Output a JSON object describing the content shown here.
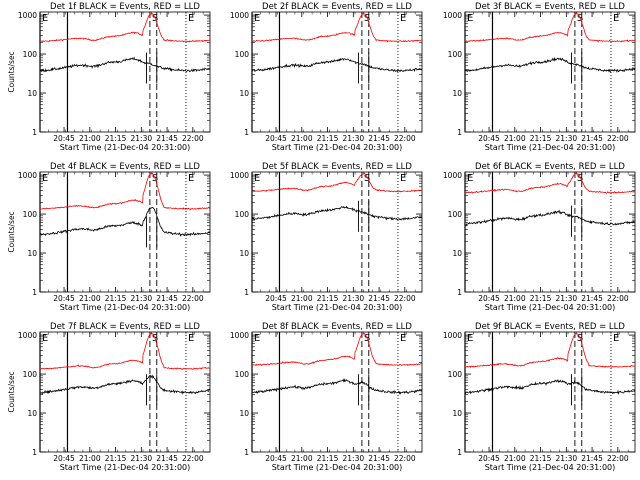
{
  "chart_data": [
    {
      "type": "line",
      "title": "Det 1f BLACK = Events, RED = LLD",
      "xlabel": "Start Time (21-Dec-04 20:31:00)",
      "ylabel": "Counts/sec",
      "yscale": "log",
      "ylim": [
        1,
        1200
      ],
      "xlim": [
        "20:31",
        "22:10"
      ],
      "x_ticks": [
        "20:45",
        "21:00",
        "21:15",
        "21:30",
        "21:45",
        "22:00"
      ],
      "y_ticks": [
        "1",
        "10",
        "100",
        "1000"
      ],
      "markers": [
        {
          "label": "E",
          "time": "20:31",
          "style": "solid"
        },
        {
          "label": "",
          "time": "20:47",
          "style": "solid"
        },
        {
          "label": "S",
          "time": "21:35",
          "style": "dashed"
        },
        {
          "label": "",
          "time": "21:39",
          "style": "dashed"
        },
        {
          "label": "E",
          "time": "21:56",
          "style": "dotted"
        }
      ],
      "series": [
        {
          "name": "LLD",
          "color": "#ff0000",
          "baseline": 250,
          "flare_peak": 1100
        },
        {
          "name": "Events",
          "color": "#000000",
          "baseline": 50,
          "flare_peak": 55
        }
      ]
    },
    {
      "type": "line",
      "title": "Det 2f BLACK = Events, RED = LLD",
      "xlabel": "Start Time (21-Dec-04 20:31:00)",
      "ylabel": "",
      "yscale": "log",
      "ylim": [
        1,
        1200
      ],
      "xlim": [
        "20:31",
        "22:10"
      ],
      "x_ticks": [
        "20:45",
        "21:00",
        "21:15",
        "21:30",
        "21:45",
        "22:00"
      ],
      "y_ticks": [
        "1",
        "10",
        "100",
        "1000"
      ],
      "markers": [
        {
          "label": "E",
          "time": "20:31",
          "style": "solid"
        },
        {
          "label": "",
          "time": "20:47",
          "style": "solid"
        },
        {
          "label": "S",
          "time": "21:35",
          "style": "dashed"
        },
        {
          "label": "",
          "time": "21:39",
          "style": "dashed"
        },
        {
          "label": "E",
          "time": "21:56",
          "style": "dotted"
        }
      ],
      "series": [
        {
          "name": "LLD",
          "color": "#ff0000",
          "baseline": 250,
          "flare_peak": 1100
        },
        {
          "name": "Events",
          "color": "#000000",
          "baseline": 50,
          "flare_peak": 55
        }
      ]
    },
    {
      "type": "line",
      "title": "Det 3f BLACK = Events, RED = LLD",
      "xlabel": "Start Time (21-Dec-04 20:31:00)",
      "ylabel": "",
      "yscale": "log",
      "ylim": [
        1,
        1200
      ],
      "xlim": [
        "20:31",
        "22:10"
      ],
      "x_ticks": [
        "20:45",
        "21:00",
        "21:15",
        "21:30",
        "21:45",
        "22:00"
      ],
      "y_ticks": [
        "1",
        "10",
        "100",
        "1000"
      ],
      "markers": [
        {
          "label": "E",
          "time": "20:31",
          "style": "solid"
        },
        {
          "label": "",
          "time": "20:47",
          "style": "solid"
        },
        {
          "label": "S",
          "time": "21:35",
          "style": "dashed"
        },
        {
          "label": "",
          "time": "21:39",
          "style": "dashed"
        },
        {
          "label": "E",
          "time": "21:56",
          "style": "dotted"
        }
      ],
      "series": [
        {
          "name": "LLD",
          "color": "#ff0000",
          "baseline": 250,
          "flare_peak": 1100
        },
        {
          "name": "Events",
          "color": "#000000",
          "baseline": 50,
          "flare_peak": 55
        }
      ]
    },
    {
      "type": "line",
      "title": "Det 4f BLACK = Events, RED = LLD",
      "xlabel": "Start Time (21-Dec-04 20:31:00)",
      "ylabel": "Counts/sec",
      "yscale": "log",
      "ylim": [
        1,
        1200
      ],
      "xlim": [
        "20:31",
        "22:10"
      ],
      "x_ticks": [
        "20:45",
        "21:00",
        "21:15",
        "21:30",
        "21:45",
        "22:00"
      ],
      "y_ticks": [
        "1",
        "10",
        "100",
        "1000"
      ],
      "markers": [
        {
          "label": "E",
          "time": "20:31",
          "style": "solid"
        },
        {
          "label": "",
          "time": "20:47",
          "style": "solid"
        },
        {
          "label": "S",
          "time": "21:35",
          "style": "dashed"
        },
        {
          "label": "",
          "time": "21:39",
          "style": "dashed"
        },
        {
          "label": "E",
          "time": "21:56",
          "style": "dotted"
        }
      ],
      "series": [
        {
          "name": "LLD",
          "color": "#ff0000",
          "baseline": 160,
          "flare_peak": 1100
        },
        {
          "name": "Events",
          "color": "#000000",
          "baseline": 40,
          "flare_peak": 150
        }
      ]
    },
    {
      "type": "line",
      "title": "Det 5f BLACK = Events, RED = LLD",
      "xlabel": "Start Time (21-Dec-04 20:31:00)",
      "ylabel": "",
      "yscale": "log",
      "ylim": [
        1,
        1200
      ],
      "xlim": [
        "20:31",
        "22:10"
      ],
      "x_ticks": [
        "20:45",
        "21:00",
        "21:15",
        "21:30",
        "21:45",
        "22:00"
      ],
      "y_ticks": [
        "1",
        "10",
        "100",
        "1000"
      ],
      "markers": [
        {
          "label": "E",
          "time": "20:31",
          "style": "solid"
        },
        {
          "label": "",
          "time": "20:47",
          "style": "solid"
        },
        {
          "label": "S",
          "time": "21:35",
          "style": "dashed"
        },
        {
          "label": "",
          "time": "21:39",
          "style": "dashed"
        },
        {
          "label": "E",
          "time": "21:56",
          "style": "dotted"
        }
      ],
      "series": [
        {
          "name": "LLD",
          "color": "#ff0000",
          "baseline": 450,
          "flare_peak": 1100
        },
        {
          "name": "Events",
          "color": "#000000",
          "baseline": 100,
          "flare_peak": 110
        }
      ]
    },
    {
      "type": "line",
      "title": "Det 6f BLACK = Events, RED = LLD",
      "xlabel": "Start Time (21-Dec-04 20:31:00)",
      "ylabel": "",
      "yscale": "log",
      "ylim": [
        1,
        1200
      ],
      "xlim": [
        "20:31",
        "22:10"
      ],
      "x_ticks": [
        "20:45",
        "21:00",
        "21:15",
        "21:30",
        "21:45",
        "22:00"
      ],
      "y_ticks": [
        "1",
        "10",
        "100",
        "1000"
      ],
      "markers": [
        {
          "label": "E",
          "time": "20:31",
          "style": "solid"
        },
        {
          "label": "",
          "time": "20:47",
          "style": "solid"
        },
        {
          "label": "S",
          "time": "21:35",
          "style": "dashed"
        },
        {
          "label": "",
          "time": "21:39",
          "style": "dashed"
        },
        {
          "label": "E",
          "time": "21:56",
          "style": "dotted"
        }
      ],
      "series": [
        {
          "name": "LLD",
          "color": "#ff0000",
          "baseline": 420,
          "flare_peak": 1100
        },
        {
          "name": "Events",
          "color": "#000000",
          "baseline": 75,
          "flare_peak": 85
        }
      ]
    },
    {
      "type": "line",
      "title": "Det 7f BLACK = Events, RED = LLD",
      "xlabel": "Start Time (21-Dec-04 20:31:00)",
      "ylabel": "Counts/sec",
      "yscale": "log",
      "ylim": [
        1,
        1200
      ],
      "xlim": [
        "20:31",
        "22:10"
      ],
      "x_ticks": [
        "20:45",
        "21:00",
        "21:15",
        "21:30",
        "21:45",
        "22:00"
      ],
      "y_ticks": [
        "1",
        "10",
        "100",
        "1000"
      ],
      "markers": [
        {
          "label": "E",
          "time": "20:31",
          "style": "solid"
        },
        {
          "label": "",
          "time": "20:47",
          "style": "solid"
        },
        {
          "label": "S",
          "time": "21:35",
          "style": "dashed"
        },
        {
          "label": "",
          "time": "21:39",
          "style": "dashed"
        },
        {
          "label": "E",
          "time": "21:56",
          "style": "dotted"
        }
      ],
      "series": [
        {
          "name": "LLD",
          "color": "#ff0000",
          "baseline": 160,
          "flare_peak": 1100
        },
        {
          "name": "Events",
          "color": "#000000",
          "baseline": 45,
          "flare_peak": 90
        }
      ]
    },
    {
      "type": "line",
      "title": "Det 8f BLACK = Events, RED = LLD",
      "xlabel": "Start Time (21-Dec-04 20:31:00)",
      "ylabel": "",
      "yscale": "log",
      "ylim": [
        1,
        1200
      ],
      "xlim": [
        "20:31",
        "22:10"
      ],
      "x_ticks": [
        "20:45",
        "21:00",
        "21:15",
        "21:30",
        "21:45",
        "22:00"
      ],
      "y_ticks": [
        "1",
        "10",
        "100",
        "1000"
      ],
      "markers": [
        {
          "label": "E",
          "time": "20:31",
          "style": "solid"
        },
        {
          "label": "",
          "time": "20:47",
          "style": "solid"
        },
        {
          "label": "S",
          "time": "21:35",
          "style": "dashed"
        },
        {
          "label": "",
          "time": "21:39",
          "style": "dashed"
        },
        {
          "label": "E",
          "time": "21:56",
          "style": "dotted"
        }
      ],
      "series": [
        {
          "name": "LLD",
          "color": "#ff0000",
          "baseline": 200,
          "flare_peak": 1100
        },
        {
          "name": "Events",
          "color": "#000000",
          "baseline": 45,
          "flare_peak": 60
        }
      ]
    },
    {
      "type": "line",
      "title": "Det 9f BLACK = Events, RED = LLD",
      "xlabel": "Start Time (21-Dec-04 20:31:00)",
      "ylabel": "",
      "yscale": "log",
      "ylim": [
        1,
        1200
      ],
      "xlim": [
        "20:31",
        "22:10"
      ],
      "x_ticks": [
        "20:45",
        "21:00",
        "21:15",
        "21:30",
        "21:45",
        "22:00"
      ],
      "y_ticks": [
        "1",
        "10",
        "100",
        "1000"
      ],
      "markers": [
        {
          "label": "E",
          "time": "20:31",
          "style": "solid"
        },
        {
          "label": "",
          "time": "20:47",
          "style": "solid"
        },
        {
          "label": "S",
          "time": "21:35",
          "style": "dashed"
        },
        {
          "label": "",
          "time": "21:39",
          "style": "dashed"
        },
        {
          "label": "E",
          "time": "21:56",
          "style": "dotted"
        }
      ],
      "series": [
        {
          "name": "LLD",
          "color": "#ff0000",
          "baseline": 180,
          "flare_peak": 1100
        },
        {
          "name": "Events",
          "color": "#000000",
          "baseline": 45,
          "flare_peak": 60
        }
      ]
    }
  ]
}
